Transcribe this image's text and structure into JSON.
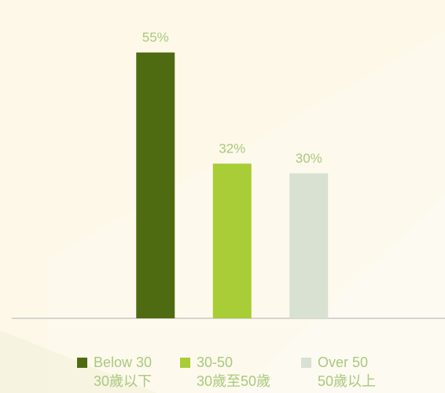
{
  "chart_data": {
    "type": "bar",
    "categories": [
      "Below 30",
      "30-50",
      "Over 50"
    ],
    "categories_zh": [
      "30歲以下",
      "30歲至50歲",
      "50歲以上"
    ],
    "values": [
      55,
      32,
      30
    ],
    "value_labels": [
      "55%",
      "32%",
      "30%"
    ],
    "colors": [
      "#4f6b12",
      "#a8cd36",
      "#d9e1d2"
    ],
    "ylim": [
      0,
      60
    ]
  }
}
